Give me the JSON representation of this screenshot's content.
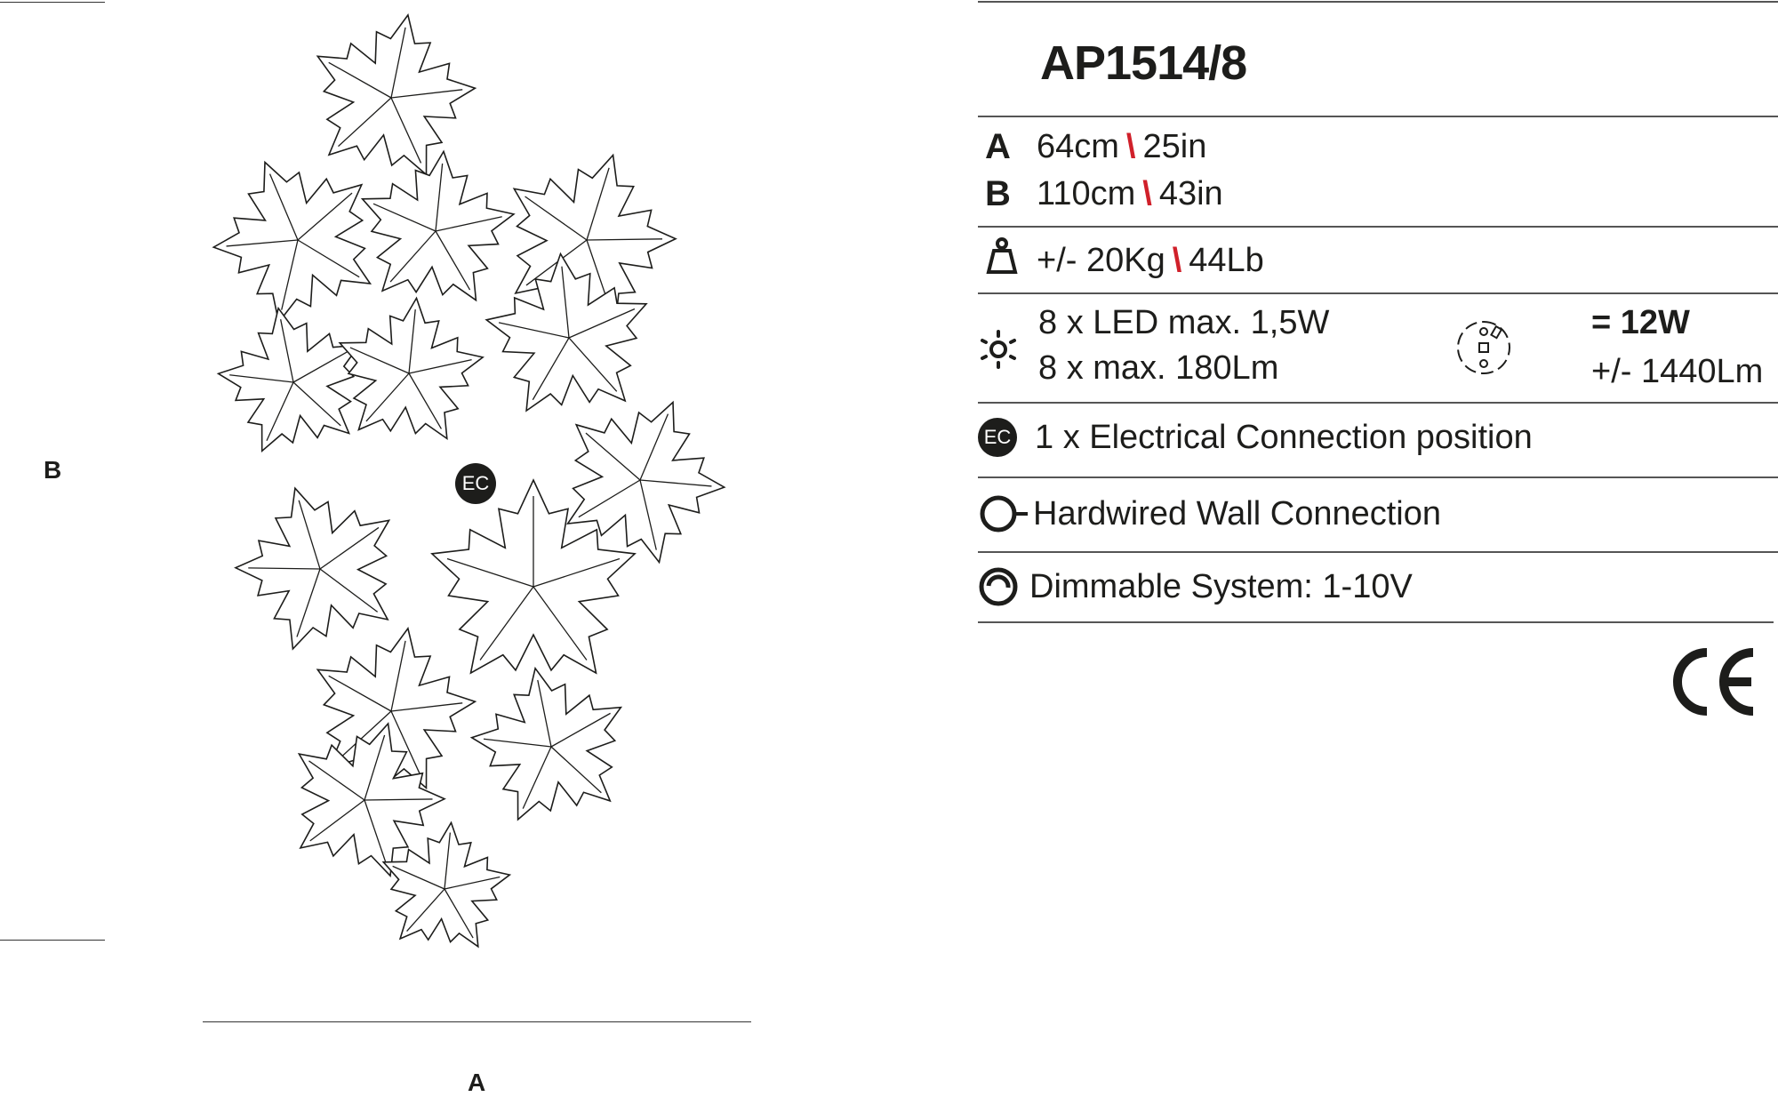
{
  "product": {
    "code": "AP1514/8"
  },
  "drawing": {
    "dimension_a_label": "A",
    "dimension_b_label": "B",
    "ec_marker": "EC"
  },
  "specs": {
    "dimensions": [
      {
        "key": "A",
        "metric": "64cm",
        "imperial": "25in"
      },
      {
        "key": "B",
        "metric": "110cm",
        "imperial": "43in"
      }
    ],
    "weight": {
      "icon": "weight-icon",
      "metric": "+/- 20Kg",
      "imperial": "44Lb"
    },
    "light": {
      "icon": "sun-icon",
      "line1": "8 x LED max. 1,5W",
      "line2": "8 x max. 180Lm",
      "module_icon": "led-module-icon",
      "total_power": "= 12W",
      "total_lumen": "+/- 1440Lm"
    },
    "connection_position": {
      "icon_text": "EC",
      "text": "1 x Electrical Connection position"
    },
    "wall_connection": {
      "icon": "hardwired-icon",
      "text": "Hardwired Wall Connection"
    },
    "dimmable": {
      "icon": "dimmer-icon",
      "text": "Dimmable System: 1-10V"
    }
  },
  "certification": {
    "mark": "CE"
  },
  "colors": {
    "separator": "#d0202a",
    "text": "#1d1d1b"
  }
}
